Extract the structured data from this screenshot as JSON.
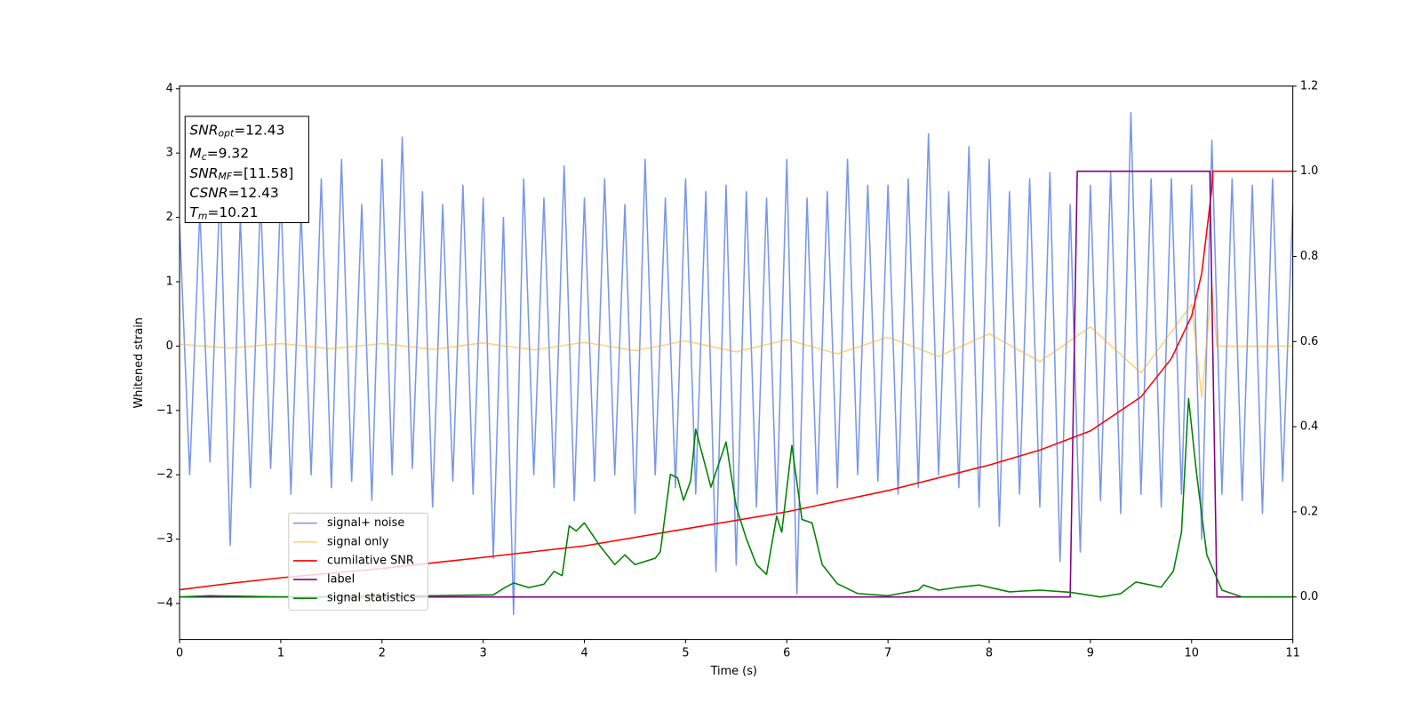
{
  "chart_data": {
    "type": "line",
    "xlabel": "Time (s)",
    "ylabel": "Whitened strain",
    "xlim": [
      0,
      11
    ],
    "xticks": [
      0,
      1,
      2,
      3,
      4,
      5,
      6,
      7,
      8,
      9,
      10,
      11
    ],
    "ylim": [
      -4.56,
      4.04
    ],
    "yticks": [
      -4,
      -3,
      -2,
      -1,
      0,
      1,
      2,
      3,
      4
    ],
    "y2lim": [
      -0.1,
      1.2
    ],
    "y2ticks": [
      0.0,
      0.2,
      0.4,
      0.6,
      0.8,
      1.0,
      1.2
    ],
    "grid": false,
    "legend": "lower left",
    "annotations": [
      {
        "main": "SNR",
        "sub": "opt",
        "rest": "=12.43"
      },
      {
        "main": "M",
        "sub": "c",
        "rest": "=9.32"
      },
      {
        "main": "SNR",
        "sub": "MF",
        "rest": "=[11.58]"
      },
      {
        "main": "CSNR",
        "rest": "=12.43"
      },
      {
        "main": "T",
        "sub": "m",
        "rest": "=10.21"
      }
    ],
    "series": [
      {
        "name": "signal+ noise",
        "color": "#4169e1",
        "alpha": 0.7,
        "x": [
          0,
          0.1,
          0.2,
          0.3,
          0.4,
          0.5,
          0.6,
          0.7,
          0.8,
          0.9,
          1,
          1.1,
          1.2,
          1.3,
          1.4,
          1.5,
          1.6,
          1.7,
          1.8,
          1.9,
          2,
          2.1,
          2.2,
          2.3,
          2.4,
          2.5,
          2.6,
          2.7,
          2.8,
          2.9,
          3,
          3.1,
          3.2,
          3.3,
          3.4,
          3.5,
          3.6,
          3.7,
          3.8,
          3.9,
          4,
          4.1,
          4.2,
          4.3,
          4.4,
          4.5,
          4.6,
          4.7,
          4.8,
          4.9,
          5,
          5.1,
          5.2,
          5.3,
          5.4,
          5.5,
          5.6,
          5.7,
          5.8,
          5.9,
          6,
          6.1,
          6.2,
          6.3,
          6.4,
          6.5,
          6.6,
          6.7,
          6.8,
          6.9,
          7,
          7.1,
          7.2,
          7.3,
          7.4,
          7.5,
          7.6,
          7.7,
          7.8,
          7.9,
          8,
          8.1,
          8.2,
          8.3,
          8.4,
          8.5,
          8.6,
          8.7,
          8.8,
          8.9,
          9,
          9.1,
          9.2,
          9.3,
          9.4,
          9.5,
          9.6,
          9.7,
          9.8,
          9.9,
          10,
          10.1,
          10.2,
          10.3,
          10.4,
          10.5,
          10.6,
          10.7,
          10.8,
          10.9,
          11
        ],
        "values": [
          1.9,
          -2.0,
          2.1,
          -1.8,
          2.5,
          -3.1,
          2.0,
          -2.2,
          2.3,
          -1.9,
          2.4,
          -2.3,
          2.1,
          -2.0,
          2.6,
          -2.2,
          2.9,
          -2.1,
          2.2,
          -2.4,
          2.9,
          -2.0,
          3.25,
          -1.9,
          2.4,
          -2.5,
          2.2,
          -2.1,
          2.5,
          -2.3,
          2.3,
          -3.3,
          2.0,
          -4.17,
          2.6,
          -2.0,
          2.3,
          -2.2,
          2.8,
          -2.4,
          2.3,
          -2.1,
          2.6,
          -2.0,
          2.2,
          -2.6,
          2.9,
          -2.0,
          2.3,
          -2.2,
          2.6,
          -2.3,
          2.4,
          -3.5,
          2.5,
          -3.4,
          2.4,
          -2.5,
          2.3,
          -2.6,
          2.9,
          -3.85,
          2.3,
          -2.3,
          2.4,
          -2.2,
          2.9,
          -2.0,
          2.5,
          -2.1,
          2.5,
          -2.3,
          2.6,
          -2.2,
          3.3,
          -2.0,
          2.4,
          -2.2,
          3.1,
          -2.5,
          2.9,
          -2.8,
          2.4,
          -2.3,
          2.6,
          -2.5,
          2.7,
          -3.35,
          2.2,
          -3.2,
          2.5,
          -2.4,
          2.7,
          -2.6,
          3.63,
          -2.3,
          2.6,
          -2.5,
          2.6,
          -2.3,
          2.5,
          -3.0,
          3.2,
          -2.3,
          2.6,
          -2.4,
          2.5,
          -2.6,
          2.6,
          -2.1,
          2.2
        ]
      },
      {
        "name": "signal only",
        "color": "#ffa500",
        "alpha": 0.5,
        "x": [
          0,
          0.5,
          1,
          1.5,
          2,
          2.5,
          3,
          3.5,
          4,
          4.5,
          5,
          5.5,
          6,
          6.5,
          7,
          7.5,
          8,
          8.5,
          9,
          9.5,
          10,
          10.1,
          10.2,
          10.25,
          11
        ],
        "values": [
          0.03,
          -0.03,
          0.04,
          -0.04,
          0.04,
          -0.05,
          0.05,
          -0.06,
          0.06,
          -0.07,
          0.08,
          -0.09,
          0.1,
          -0.12,
          0.14,
          -0.16,
          0.19,
          -0.24,
          0.3,
          -0.42,
          0.65,
          -0.8,
          0.95,
          0,
          0
        ]
      },
      {
        "name": "cumilative SNR",
        "color": "#ff0000",
        "alpha": 1,
        "axis": "y2",
        "x": [
          0,
          0.5,
          1,
          2,
          3,
          4,
          5,
          6,
          7,
          8,
          8.5,
          9,
          9.5,
          9.8,
          10,
          10.1,
          10.2,
          10.21,
          11
        ],
        "values": [
          0.017,
          0.032,
          0.045,
          0.067,
          0.093,
          0.12,
          0.16,
          0.2,
          0.25,
          0.31,
          0.345,
          0.39,
          0.47,
          0.56,
          0.66,
          0.76,
          0.96,
          1.0,
          1.0
        ]
      },
      {
        "name": "label",
        "color": "#800080",
        "alpha": 1,
        "axis": "y2",
        "x": [
          0,
          8.8,
          8.87,
          10.18,
          10.25,
          11
        ],
        "values": [
          0,
          0,
          1,
          1,
          0,
          0
        ]
      },
      {
        "name": "signal statistics",
        "color": "#008000",
        "alpha": 1,
        "axis": "y2",
        "x": [
          0,
          0.3,
          1,
          2.5,
          3.1,
          3.2,
          3.3,
          3.45,
          3.6,
          3.7,
          3.78,
          3.85,
          3.92,
          4.0,
          4.15,
          4.3,
          4.4,
          4.5,
          4.7,
          4.75,
          4.85,
          4.92,
          4.98,
          5.05,
          5.1,
          5.25,
          5.4,
          5.5,
          5.6,
          5.7,
          5.8,
          5.9,
          5.95,
          6.05,
          6.15,
          6.25,
          6.35,
          6.5,
          6.7,
          7.0,
          7.3,
          7.35,
          7.5,
          7.7,
          7.9,
          8.2,
          8.5,
          8.8,
          9.1,
          9.3,
          9.45,
          9.7,
          9.82,
          9.9,
          9.97,
          10.05,
          10.15,
          10.3,
          10.5,
          11
        ],
        "values": [
          0,
          0.003,
          0,
          0.003,
          0.005,
          0.02,
          0.033,
          0.022,
          0.03,
          0.06,
          0.05,
          0.167,
          0.155,
          0.174,
          0.121,
          0.076,
          0.099,
          0.076,
          0.091,
          0.106,
          0.288,
          0.28,
          0.227,
          0.273,
          0.394,
          0.258,
          0.364,
          0.212,
          0.137,
          0.076,
          0.053,
          0.19,
          0.152,
          0.356,
          0.182,
          0.174,
          0.076,
          0.031,
          0.008,
          0.003,
          0.016,
          0.028,
          0.016,
          0.023,
          0.028,
          0.012,
          0.016,
          0.011,
          0,
          0.008,
          0.035,
          0.023,
          0.061,
          0.152,
          0.466,
          0.288,
          0.099,
          0.016,
          0,
          0
        ]
      }
    ]
  }
}
